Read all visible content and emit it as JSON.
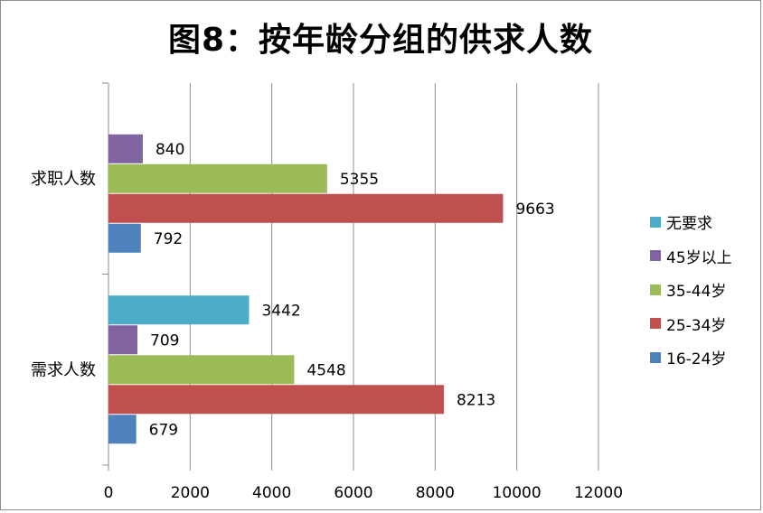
{
  "chart_data": {
    "type": "bar",
    "orientation": "horizontal",
    "title": "图8：按年龄分组的供求人数",
    "categories": [
      "求职人数",
      "需求人数"
    ],
    "series": [
      {
        "name": "无要求",
        "color": "#4bacc6",
        "values": [
          null,
          3442
        ]
      },
      {
        "name": "45岁以上",
        "color": "#8064a2",
        "values": [
          840,
          709
        ]
      },
      {
        "name": "35-44岁",
        "color": "#9bbb59",
        "values": [
          5355,
          4548
        ]
      },
      {
        "name": "25-34岁",
        "color": "#c0504d",
        "values": [
          9663,
          8213
        ]
      },
      {
        "name": "16-24岁",
        "color": "#4f81bd",
        "values": [
          792,
          679
        ]
      }
    ],
    "x_ticks": [
      0,
      2000,
      4000,
      6000,
      8000,
      10000,
      12000
    ],
    "xlim": [
      0,
      12000
    ],
    "xlabel": "",
    "ylabel": "",
    "grid": "vertical",
    "legend_position": "right",
    "data_labels": true
  }
}
